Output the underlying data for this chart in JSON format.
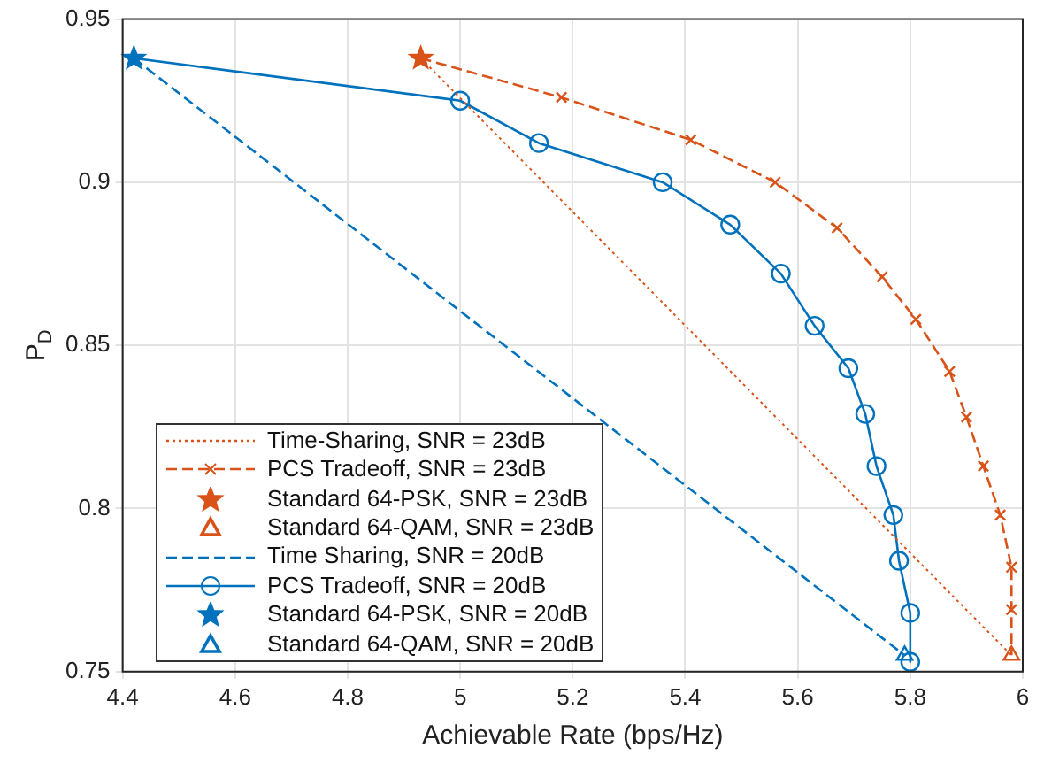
{
  "chart_data": {
    "type": "line",
    "xlabel": "Achievable Rate (bps/Hz)",
    "ylabel": "P$_{D}$",
    "xlim": [
      4.4,
      6
    ],
    "xticks": [
      4.4,
      4.6,
      4.8,
      5,
      5.2,
      5.4,
      5.6,
      5.8,
      6
    ],
    "ylim": [
      0.75,
      0.95
    ],
    "yticks": [
      0.75,
      0.8,
      0.85,
      0.9,
      0.95
    ],
    "grid": true,
    "legend": "bottom left",
    "series": [
      {
        "name": "Time-Sharing, SNR = 23dB",
        "type": "line",
        "color": "#d95319",
        "line_style": "dotted",
        "marker": "none",
        "x": [
          4.93,
          5.98
        ],
        "values": [
          0.938,
          0.755
        ]
      },
      {
        "name": "PCS Tradeoff, SNR = 23dB",
        "type": "line",
        "color": "#d95319",
        "line_style": "dashed",
        "marker": "cross",
        "x": [
          4.93,
          5.18,
          5.41,
          5.56,
          5.67,
          5.75,
          5.81,
          5.87,
          5.9,
          5.93,
          5.96,
          5.98,
          5.98,
          5.98
        ],
        "values": [
          0.938,
          0.926,
          0.913,
          0.9,
          0.886,
          0.871,
          0.858,
          0.842,
          0.828,
          0.813,
          0.798,
          0.782,
          0.769,
          0.755
        ]
      },
      {
        "name": "Standard 64-PSK, SNR = 23dB",
        "type": "scatter",
        "color": "#d95319",
        "marker": "star",
        "x": [
          4.93
        ],
        "values": [
          0.938
        ]
      },
      {
        "name": "Standard 64-QAM, SNR = 23dB",
        "type": "scatter",
        "color": "#d95319",
        "marker": "triangle",
        "x": [
          5.98
        ],
        "values": [
          0.755
        ]
      },
      {
        "name": "Time Sharing, SNR = 20dB",
        "type": "line",
        "color": "#0072bd",
        "line_style": "dashed",
        "marker": "none",
        "x": [
          4.42,
          5.79
        ],
        "values": [
          0.938,
          0.755
        ]
      },
      {
        "name": "PCS Tradeoff, SNR = 20dB",
        "type": "line",
        "color": "#0072bd",
        "line_style": "solid",
        "marker": "circle",
        "x": [
          4.42,
          5.0,
          5.14,
          5.36,
          5.48,
          5.57,
          5.63,
          5.69,
          5.72,
          5.74,
          5.77,
          5.78,
          5.8,
          5.8
        ],
        "values": [
          0.938,
          0.925,
          0.912,
          0.9,
          0.887,
          0.872,
          0.856,
          0.843,
          0.829,
          0.813,
          0.798,
          0.784,
          0.768,
          0.753
        ]
      },
      {
        "name": "Standard 64-PSK, SNR = 20dB",
        "type": "scatter",
        "color": "#0072bd",
        "marker": "star",
        "x": [
          4.42
        ],
        "values": [
          0.938
        ]
      },
      {
        "name": "Standard 64-QAM, SNR = 20dB",
        "type": "scatter",
        "color": "#0072bd",
        "marker": "triangle",
        "x": [
          5.79
        ],
        "values": [
          0.755
        ]
      }
    ]
  }
}
